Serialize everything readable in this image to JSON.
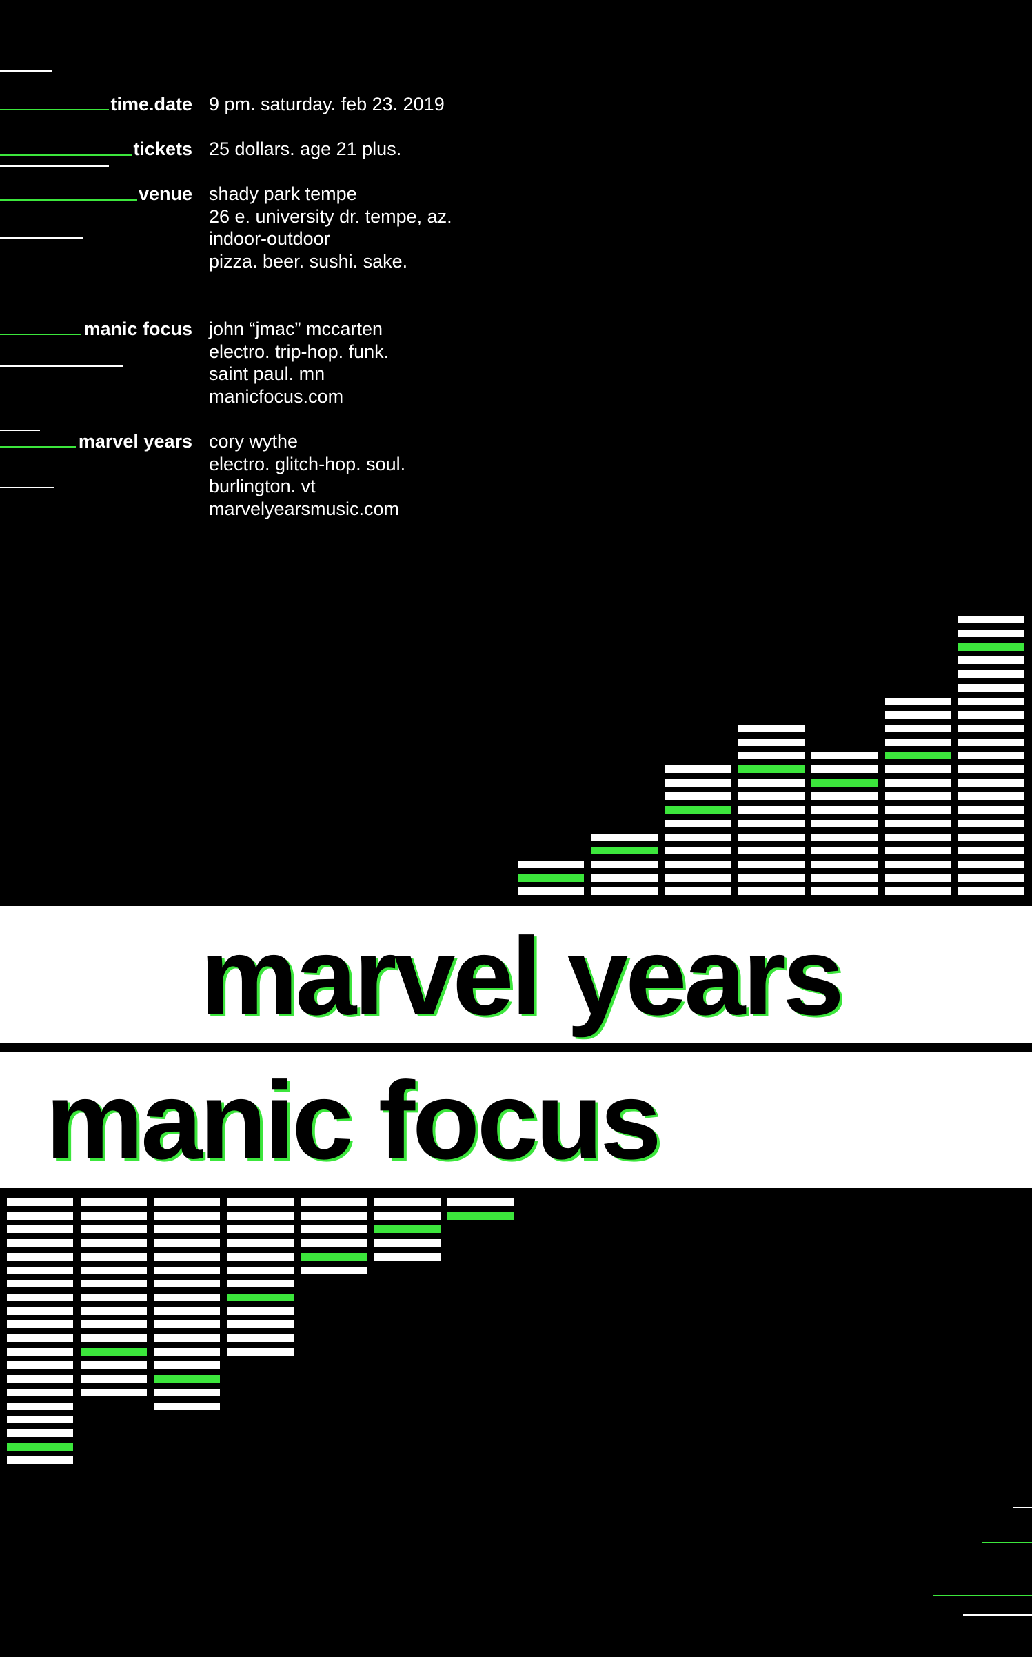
{
  "colors": {
    "background": "#000000",
    "text": "#ffffff",
    "accent": "#3ce63c",
    "band": "#ffffff"
  },
  "details": [
    {
      "label": "time.date",
      "lines": [
        "9 pm. saturday. feb 23. 2019"
      ]
    },
    {
      "label": "tickets",
      "lines": [
        "25 dollars. age 21 plus."
      ]
    },
    {
      "label": "venue",
      "lines": [
        "shady park tempe",
        "26 e. university dr. tempe, az.",
        "indoor-outdoor",
        "pizza. beer. sushi. sake."
      ]
    },
    {
      "label": "manic focus",
      "lines": [
        "john “jmac” mccarten",
        "electro. trip-hop. funk.",
        "saint paul. mn",
        "manicfocus.com"
      ]
    },
    {
      "label": "marvel years",
      "lines": [
        "cory wythe",
        "electro. glitch-hop. soul.",
        "burlington. vt",
        "marvelyearsmusic.com"
      ]
    }
  ],
  "headlines": {
    "top": "marvel years",
    "bottom": "manic focus"
  },
  "equalizer_top": [
    {
      "segments": 3,
      "accent_segment": 2
    },
    {
      "segments": 5,
      "accent_segment": 4
    },
    {
      "segments": 10,
      "accent_segment": 7
    },
    {
      "segments": 13,
      "accent_segment": 10
    },
    {
      "segments": 11,
      "accent_segment": 9
    },
    {
      "segments": 15,
      "accent_segment": 11
    },
    {
      "segments": 21,
      "accent_segment": 19
    }
  ],
  "equalizer_bottom": [
    {
      "segments": 20,
      "accent_segment": 19
    },
    {
      "segments": 15,
      "accent_segment": 12
    },
    {
      "segments": 16,
      "accent_segment": 14
    },
    {
      "segments": 12,
      "accent_segment": 8
    },
    {
      "segments": 6,
      "accent_segment": 5
    },
    {
      "segments": 5,
      "accent_segment": 3
    },
    {
      "segments": 2,
      "accent_segment": 2
    }
  ]
}
